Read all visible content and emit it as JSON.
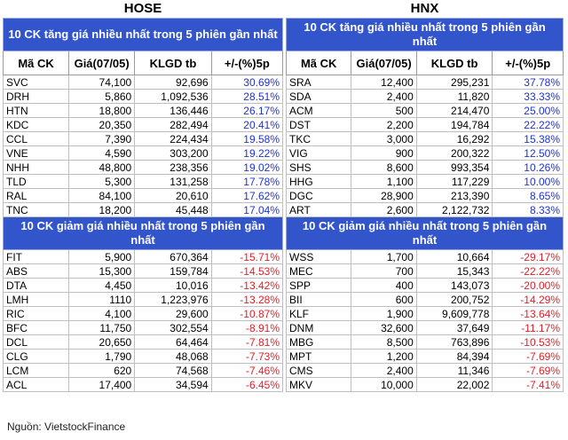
{
  "left": {
    "exchange": "HOSE",
    "gainers_title": "10 CK tăng giá nhiều nhất trong 5 phiên gần nhất",
    "losers_title": "10 CK giảm giá nhiều nhất trong 5 phiên gần nhất",
    "columns": [
      "Mã CK",
      "Giá(07/05)",
      "KLGD tb",
      "+/-(%)5p"
    ],
    "gainers": [
      [
        "SVC",
        "74,100",
        "92,696",
        "30.69%"
      ],
      [
        "DRH",
        "5,860",
        "1,092,536",
        "28.51%"
      ],
      [
        "HTN",
        "18,800",
        "136,446",
        "26.17%"
      ],
      [
        "KDC",
        "20,350",
        "282,494",
        "20.41%"
      ],
      [
        "CCL",
        "7,390",
        "224,434",
        "19.58%"
      ],
      [
        "VNE",
        "4,590",
        "303,200",
        "19.22%"
      ],
      [
        "NHH",
        "48,800",
        "238,356",
        "19.02%"
      ],
      [
        "TLD",
        "5,300",
        "131,258",
        "17.78%"
      ],
      [
        "RAL",
        "84,100",
        "20,610",
        "17.62%"
      ],
      [
        "TNC",
        "18,200",
        "45,448",
        "17.04%"
      ]
    ],
    "losers": [
      [
        "FIT",
        "5,900",
        "670,364",
        "-15.71%"
      ],
      [
        "ABS",
        "15,300",
        "159,784",
        "-14.53%"
      ],
      [
        "DTA",
        "4,450",
        "10,016",
        "-13.42%"
      ],
      [
        "LMH",
        "1110",
        "1,223,976",
        "-13.28%"
      ],
      [
        "RIC",
        "4,100",
        "29,600",
        "-10.87%"
      ],
      [
        "BFC",
        "11,750",
        "302,554",
        "-8.91%"
      ],
      [
        "DCL",
        "20,650",
        "64,464",
        "-7.81%"
      ],
      [
        "CLG",
        "1,790",
        "48,068",
        "-7.73%"
      ],
      [
        "LCM",
        "620",
        "74,568",
        "-7.46%"
      ],
      [
        "ACL",
        "17,400",
        "34,594",
        "-6.45%"
      ]
    ]
  },
  "right": {
    "exchange": "HNX",
    "gainers_title": "10 CK tăng giá nhiều nhất trong 5 phiên gần nhất",
    "losers_title": "10 CK giảm giá nhiều nhất trong 5 phiên gần nhất",
    "columns": [
      "Mã CK",
      "Giá(07/05)",
      "KLGD tb",
      "+/-(%)5p"
    ],
    "gainers": [
      [
        "SRA",
        "12,400",
        "295,231",
        "37.78%"
      ],
      [
        "SDA",
        "2,400",
        "11,820",
        "33.33%"
      ],
      [
        "ACM",
        "500",
        "214,470",
        "25.00%"
      ],
      [
        "DST",
        "2,200",
        "194,784",
        "22.22%"
      ],
      [
        "TKC",
        "3,000",
        "16,292",
        "15.38%"
      ],
      [
        "VIG",
        "900",
        "200,322",
        "12.50%"
      ],
      [
        "SHS",
        "8,600",
        "993,354",
        "10.26%"
      ],
      [
        "HHG",
        "1,100",
        "117,229",
        "10.00%"
      ],
      [
        "DGC",
        "28,900",
        "213,390",
        "8.65%"
      ],
      [
        "ART",
        "2,600",
        "2,122,732",
        "8.33%"
      ]
    ],
    "losers": [
      [
        "WSS",
        "1,700",
        "10,664",
        "-29.17%"
      ],
      [
        "MEC",
        "700",
        "15,343",
        "-22.22%"
      ],
      [
        "SPP",
        "400",
        "143,073",
        "-20.00%"
      ],
      [
        "BII",
        "600",
        "200,752",
        "-14.29%"
      ],
      [
        "KLF",
        "1,900",
        "9,609,778",
        "-13.64%"
      ],
      [
        "DNM",
        "32,600",
        "37,649",
        "-11.17%"
      ],
      [
        "MBG",
        "8,500",
        "763,896",
        "-10.53%"
      ],
      [
        "MPT",
        "1,200",
        "84,394",
        "-7.69%"
      ],
      [
        "CMS",
        "2,400",
        "11,346",
        "-7.69%"
      ],
      [
        "MKV",
        "10,000",
        "22,002",
        "-7.41%"
      ]
    ]
  },
  "source": "Nguồn: VietstockFinance",
  "colors": {
    "header_bg": "#3355cc",
    "up": "#1f33d6",
    "down": "#e0202a"
  }
}
